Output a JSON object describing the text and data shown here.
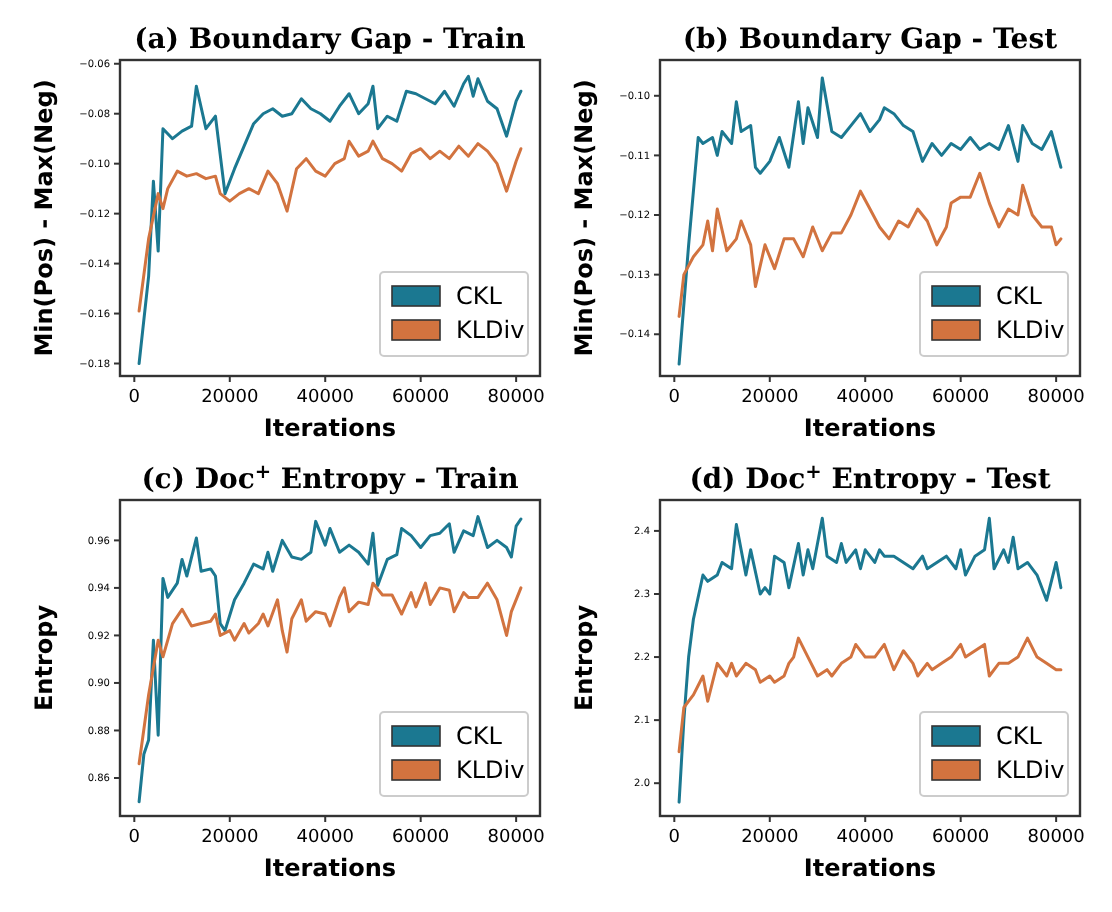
{
  "chart_data": [
    {
      "type": "line",
      "title": "(a) Boundary Gap - Train",
      "xlabel": "Iterations",
      "ylabel": "Min(Pos) - Max(Neg)",
      "xlim": [
        -3000,
        85000
      ],
      "xticks": [
        0,
        20000,
        40000,
        60000,
        80000
      ],
      "ylim": [
        -0.185,
        -0.0585
      ],
      "yticks": [
        {
          "value": -0.18,
          "label": "−0.18"
        },
        {
          "value": -0.16,
          "label": "−0.16"
        },
        {
          "value": -0.14,
          "label": "−0.14"
        },
        {
          "value": -0.12,
          "label": "−0.12"
        },
        {
          "value": -0.1,
          "label": "−0.10"
        },
        {
          "value": -0.08,
          "label": "−0.08"
        },
        {
          "value": -0.06,
          "label": "−0.06"
        }
      ],
      "legend": "bottom right",
      "grid": false,
      "series": [
        {
          "name": "CKL",
          "color": "#1b7891",
          "x": [
            1000,
            3000,
            4000,
            5000,
            6000,
            8000,
            10000,
            12000,
            13000,
            15000,
            17000,
            19000,
            21000,
            23000,
            25000,
            27000,
            29000,
            31000,
            33000,
            35000,
            37000,
            39000,
            41000,
            43000,
            45000,
            47000,
            49000,
            50000,
            51000,
            53000,
            55000,
            57000,
            59000,
            61000,
            63000,
            65000,
            67000,
            69000,
            70000,
            71000,
            72000,
            74000,
            76000,
            78000,
            80000,
            81000
          ],
          "values": [
            -0.18,
            -0.145,
            -0.107,
            -0.135,
            -0.086,
            -0.09,
            -0.087,
            -0.085,
            -0.069,
            -0.086,
            -0.081,
            -0.112,
            -0.102,
            -0.093,
            -0.084,
            -0.08,
            -0.078,
            -0.081,
            -0.08,
            -0.074,
            -0.078,
            -0.08,
            -0.083,
            -0.077,
            -0.072,
            -0.08,
            -0.076,
            -0.069,
            -0.086,
            -0.081,
            -0.083,
            -0.071,
            -0.072,
            -0.074,
            -0.076,
            -0.071,
            -0.077,
            -0.068,
            -0.065,
            -0.073,
            -0.066,
            -0.075,
            -0.078,
            -0.089,
            -0.075,
            -0.071
          ]
        },
        {
          "name": "KLDiv",
          "color": "#d2733f",
          "x": [
            1000,
            3000,
            4000,
            5000,
            6000,
            7000,
            9000,
            11000,
            13000,
            15000,
            17000,
            18000,
            20000,
            22000,
            24000,
            26000,
            28000,
            30000,
            32000,
            34000,
            36000,
            38000,
            40000,
            42000,
            44000,
            45000,
            47000,
            49000,
            50000,
            52000,
            54000,
            56000,
            58000,
            60000,
            62000,
            64000,
            66000,
            68000,
            70000,
            72000,
            74000,
            76000,
            78000,
            80000,
            81000
          ],
          "values": [
            -0.159,
            -0.13,
            -0.121,
            -0.112,
            -0.118,
            -0.11,
            -0.103,
            -0.105,
            -0.104,
            -0.106,
            -0.105,
            -0.112,
            -0.115,
            -0.112,
            -0.11,
            -0.112,
            -0.103,
            -0.108,
            -0.119,
            -0.102,
            -0.098,
            -0.103,
            -0.105,
            -0.1,
            -0.098,
            -0.091,
            -0.097,
            -0.095,
            -0.091,
            -0.098,
            -0.1,
            -0.103,
            -0.096,
            -0.094,
            -0.098,
            -0.095,
            -0.098,
            -0.093,
            -0.097,
            -0.092,
            -0.095,
            -0.1,
            -0.111,
            -0.099,
            -0.094
          ]
        }
      ]
    },
    {
      "type": "line",
      "title": "(b) Boundary Gap - Test",
      "xlabel": "Iterations",
      "ylabel": "Min(Pos) - Max(Neg)",
      "xlim": [
        -3000,
        85000
      ],
      "xticks": [
        0,
        20000,
        40000,
        60000,
        80000
      ],
      "ylim": [
        -0.147,
        -0.094
      ],
      "yticks": [
        {
          "value": -0.14,
          "label": "−0.14"
        },
        {
          "value": -0.13,
          "label": "−0.13"
        },
        {
          "value": -0.12,
          "label": "−0.12"
        },
        {
          "value": -0.11,
          "label": "−0.11"
        },
        {
          "value": -0.1,
          "label": "−0.10"
        }
      ],
      "legend": "bottom right",
      "grid": false,
      "series": [
        {
          "name": "CKL",
          "color": "#1b7891",
          "x": [
            1000,
            3000,
            5000,
            6000,
            8000,
            9000,
            10000,
            12000,
            13000,
            14000,
            16000,
            17000,
            18000,
            20000,
            22000,
            24000,
            26000,
            27000,
            28000,
            30000,
            31000,
            33000,
            35000,
            37000,
            39000,
            41000,
            43000,
            44000,
            46000,
            48000,
            50000,
            52000,
            54000,
            56000,
            58000,
            60000,
            62000,
            64000,
            66000,
            68000,
            70000,
            72000,
            73000,
            75000,
            77000,
            79000,
            81000
          ],
          "values": [
            -0.145,
            -0.125,
            -0.107,
            -0.108,
            -0.107,
            -0.11,
            -0.106,
            -0.108,
            -0.101,
            -0.106,
            -0.105,
            -0.112,
            -0.113,
            -0.111,
            -0.107,
            -0.112,
            -0.101,
            -0.108,
            -0.102,
            -0.107,
            -0.097,
            -0.106,
            -0.107,
            -0.105,
            -0.103,
            -0.106,
            -0.104,
            -0.102,
            -0.103,
            -0.105,
            -0.106,
            -0.111,
            -0.108,
            -0.11,
            -0.108,
            -0.109,
            -0.107,
            -0.109,
            -0.108,
            -0.109,
            -0.105,
            -0.111,
            -0.105,
            -0.108,
            -0.109,
            -0.106,
            -0.112
          ]
        },
        {
          "name": "KLDiv",
          "color": "#d2733f",
          "x": [
            1000,
            2000,
            4000,
            6000,
            7000,
            8000,
            9000,
            11000,
            13000,
            14000,
            16000,
            17000,
            19000,
            21000,
            23000,
            25000,
            27000,
            29000,
            31000,
            33000,
            35000,
            37000,
            39000,
            41000,
            43000,
            45000,
            47000,
            49000,
            51000,
            53000,
            55000,
            57000,
            58000,
            60000,
            62000,
            64000,
            66000,
            68000,
            70000,
            72000,
            73000,
            75000,
            77000,
            79000,
            80000,
            81000
          ],
          "values": [
            -0.137,
            -0.13,
            -0.127,
            -0.125,
            -0.121,
            -0.126,
            -0.119,
            -0.126,
            -0.124,
            -0.121,
            -0.125,
            -0.132,
            -0.125,
            -0.129,
            -0.124,
            -0.124,
            -0.127,
            -0.122,
            -0.126,
            -0.123,
            -0.123,
            -0.12,
            -0.116,
            -0.119,
            -0.122,
            -0.124,
            -0.121,
            -0.122,
            -0.119,
            -0.121,
            -0.125,
            -0.122,
            -0.118,
            -0.117,
            -0.117,
            -0.113,
            -0.118,
            -0.122,
            -0.119,
            -0.12,
            -0.115,
            -0.12,
            -0.122,
            -0.122,
            -0.125,
            -0.124
          ]
        }
      ]
    },
    {
      "type": "line",
      "title": "(c) Doc$^{+}$ Entropy - Train",
      "xlabel": "Iterations",
      "ylabel": "Entropy",
      "xlim": [
        -3000,
        85000
      ],
      "xticks": [
        0,
        20000,
        40000,
        60000,
        80000
      ],
      "ylim": [
        0.844,
        0.977
      ],
      "yticks": [
        0.86,
        0.88,
        {
          "value": 0.9,
          "label": "0.90"
        },
        0.92,
        0.94,
        0.96
      ],
      "legend": "bottom right",
      "grid": false,
      "series": [
        {
          "name": "CKL",
          "color": "#1b7891",
          "x": [
            1000,
            2000,
            3000,
            4000,
            5000,
            6000,
            7000,
            9000,
            10000,
            11000,
            13000,
            14000,
            16000,
            17000,
            18000,
            19000,
            21000,
            23000,
            25000,
            27000,
            28000,
            29000,
            31000,
            33000,
            35000,
            37000,
            38000,
            40000,
            41000,
            43000,
            45000,
            47000,
            49000,
            50000,
            51000,
            53000,
            55000,
            56000,
            58000,
            60000,
            62000,
            64000,
            66000,
            67000,
            69000,
            71000,
            72000,
            74000,
            76000,
            78000,
            79000,
            80000,
            81000
          ],
          "values": [
            0.85,
            0.87,
            0.876,
            0.918,
            0.878,
            0.944,
            0.936,
            0.942,
            0.952,
            0.945,
            0.961,
            0.947,
            0.948,
            0.945,
            0.925,
            0.922,
            0.935,
            0.942,
            0.95,
            0.948,
            0.955,
            0.947,
            0.96,
            0.953,
            0.952,
            0.955,
            0.968,
            0.958,
            0.965,
            0.955,
            0.958,
            0.955,
            0.95,
            0.963,
            0.941,
            0.952,
            0.954,
            0.965,
            0.962,
            0.957,
            0.962,
            0.963,
            0.967,
            0.955,
            0.964,
            0.962,
            0.97,
            0.957,
            0.96,
            0.957,
            0.953,
            0.966,
            0.969
          ]
        },
        {
          "name": "KLDiv",
          "color": "#d2733f",
          "x": [
            1000,
            3000,
            5000,
            6000,
            8000,
            10000,
            12000,
            14000,
            16000,
            17000,
            18000,
            20000,
            21000,
            23000,
            24000,
            26000,
            27000,
            28000,
            30000,
            31000,
            32000,
            33000,
            35000,
            36000,
            38000,
            40000,
            41000,
            43000,
            44000,
            45000,
            47000,
            49000,
            50000,
            52000,
            54000,
            56000,
            58000,
            59000,
            61000,
            62000,
            64000,
            66000,
            67000,
            69000,
            70000,
            72000,
            74000,
            76000,
            78000,
            79000,
            81000
          ],
          "values": [
            0.866,
            0.895,
            0.918,
            0.911,
            0.925,
            0.931,
            0.924,
            0.925,
            0.926,
            0.929,
            0.92,
            0.922,
            0.918,
            0.925,
            0.921,
            0.925,
            0.929,
            0.924,
            0.935,
            0.922,
            0.913,
            0.927,
            0.935,
            0.926,
            0.93,
            0.929,
            0.924,
            0.936,
            0.94,
            0.93,
            0.934,
            0.933,
            0.942,
            0.937,
            0.937,
            0.929,
            0.938,
            0.932,
            0.942,
            0.933,
            0.94,
            0.939,
            0.93,
            0.938,
            0.936,
            0.936,
            0.942,
            0.935,
            0.92,
            0.93,
            0.94
          ]
        }
      ]
    },
    {
      "type": "line",
      "title": "(d) Doc$^{+}$ Entropy - Test",
      "xlabel": "Iterations",
      "ylabel": "Entropy",
      "xlim": [
        -3000,
        85000
      ],
      "xticks": [
        0,
        20000,
        40000,
        60000,
        80000
      ],
      "ylim": [
        1.948,
        2.449
      ],
      "yticks": [
        {
          "value": 2,
          "label": "2.0"
        },
        2.1,
        2.2,
        2.3,
        2.4
      ],
      "legend": "bottom right",
      "grid": false,
      "series": [
        {
          "name": "CKL",
          "color": "#1b7891",
          "x": [
            1000,
            2000,
            3000,
            4000,
            6000,
            7000,
            9000,
            10000,
            12000,
            13000,
            15000,
            16000,
            18000,
            19000,
            20000,
            21000,
            23000,
            24000,
            26000,
            27000,
            28000,
            29000,
            31000,
            32000,
            34000,
            35000,
            36000,
            38000,
            39000,
            40000,
            42000,
            43000,
            44000,
            46000,
            48000,
            50000,
            52000,
            53000,
            55000,
            57000,
            59000,
            60000,
            61000,
            63000,
            65000,
            66000,
            67000,
            69000,
            70000,
            71000,
            72000,
            74000,
            76000,
            78000,
            80000,
            81000
          ],
          "values": [
            1.97,
            2.1,
            2.2,
            2.26,
            2.33,
            2.32,
            2.33,
            2.35,
            2.34,
            2.41,
            2.33,
            2.37,
            2.3,
            2.31,
            2.3,
            2.36,
            2.35,
            2.31,
            2.38,
            2.33,
            2.37,
            2.34,
            2.42,
            2.36,
            2.35,
            2.38,
            2.35,
            2.37,
            2.34,
            2.37,
            2.35,
            2.37,
            2.36,
            2.36,
            2.35,
            2.34,
            2.36,
            2.34,
            2.35,
            2.36,
            2.34,
            2.37,
            2.33,
            2.36,
            2.37,
            2.42,
            2.34,
            2.37,
            2.35,
            2.39,
            2.34,
            2.35,
            2.33,
            2.29,
            2.35,
            2.31
          ]
        },
        {
          "name": "KLDiv",
          "color": "#d2733f",
          "x": [
            1000,
            2000,
            3000,
            4000,
            6000,
            7000,
            9000,
            11000,
            12000,
            13000,
            15000,
            17000,
            18000,
            20000,
            21000,
            23000,
            24000,
            25000,
            26000,
            28000,
            30000,
            32000,
            33000,
            35000,
            37000,
            38000,
            40000,
            42000,
            44000,
            46000,
            48000,
            50000,
            51000,
            53000,
            54000,
            56000,
            58000,
            60000,
            61000,
            63000,
            65000,
            66000,
            68000,
            70000,
            72000,
            74000,
            76000,
            78000,
            80000,
            81000
          ],
          "values": [
            2.05,
            2.12,
            2.13,
            2.14,
            2.17,
            2.13,
            2.19,
            2.17,
            2.19,
            2.17,
            2.19,
            2.18,
            2.16,
            2.17,
            2.16,
            2.17,
            2.19,
            2.2,
            2.23,
            2.2,
            2.17,
            2.18,
            2.17,
            2.19,
            2.2,
            2.22,
            2.2,
            2.2,
            2.22,
            2.18,
            2.21,
            2.19,
            2.17,
            2.19,
            2.18,
            2.19,
            2.2,
            2.22,
            2.2,
            2.21,
            2.22,
            2.17,
            2.19,
            2.19,
            2.2,
            2.23,
            2.2,
            2.19,
            2.18,
            2.18
          ]
        }
      ]
    }
  ]
}
